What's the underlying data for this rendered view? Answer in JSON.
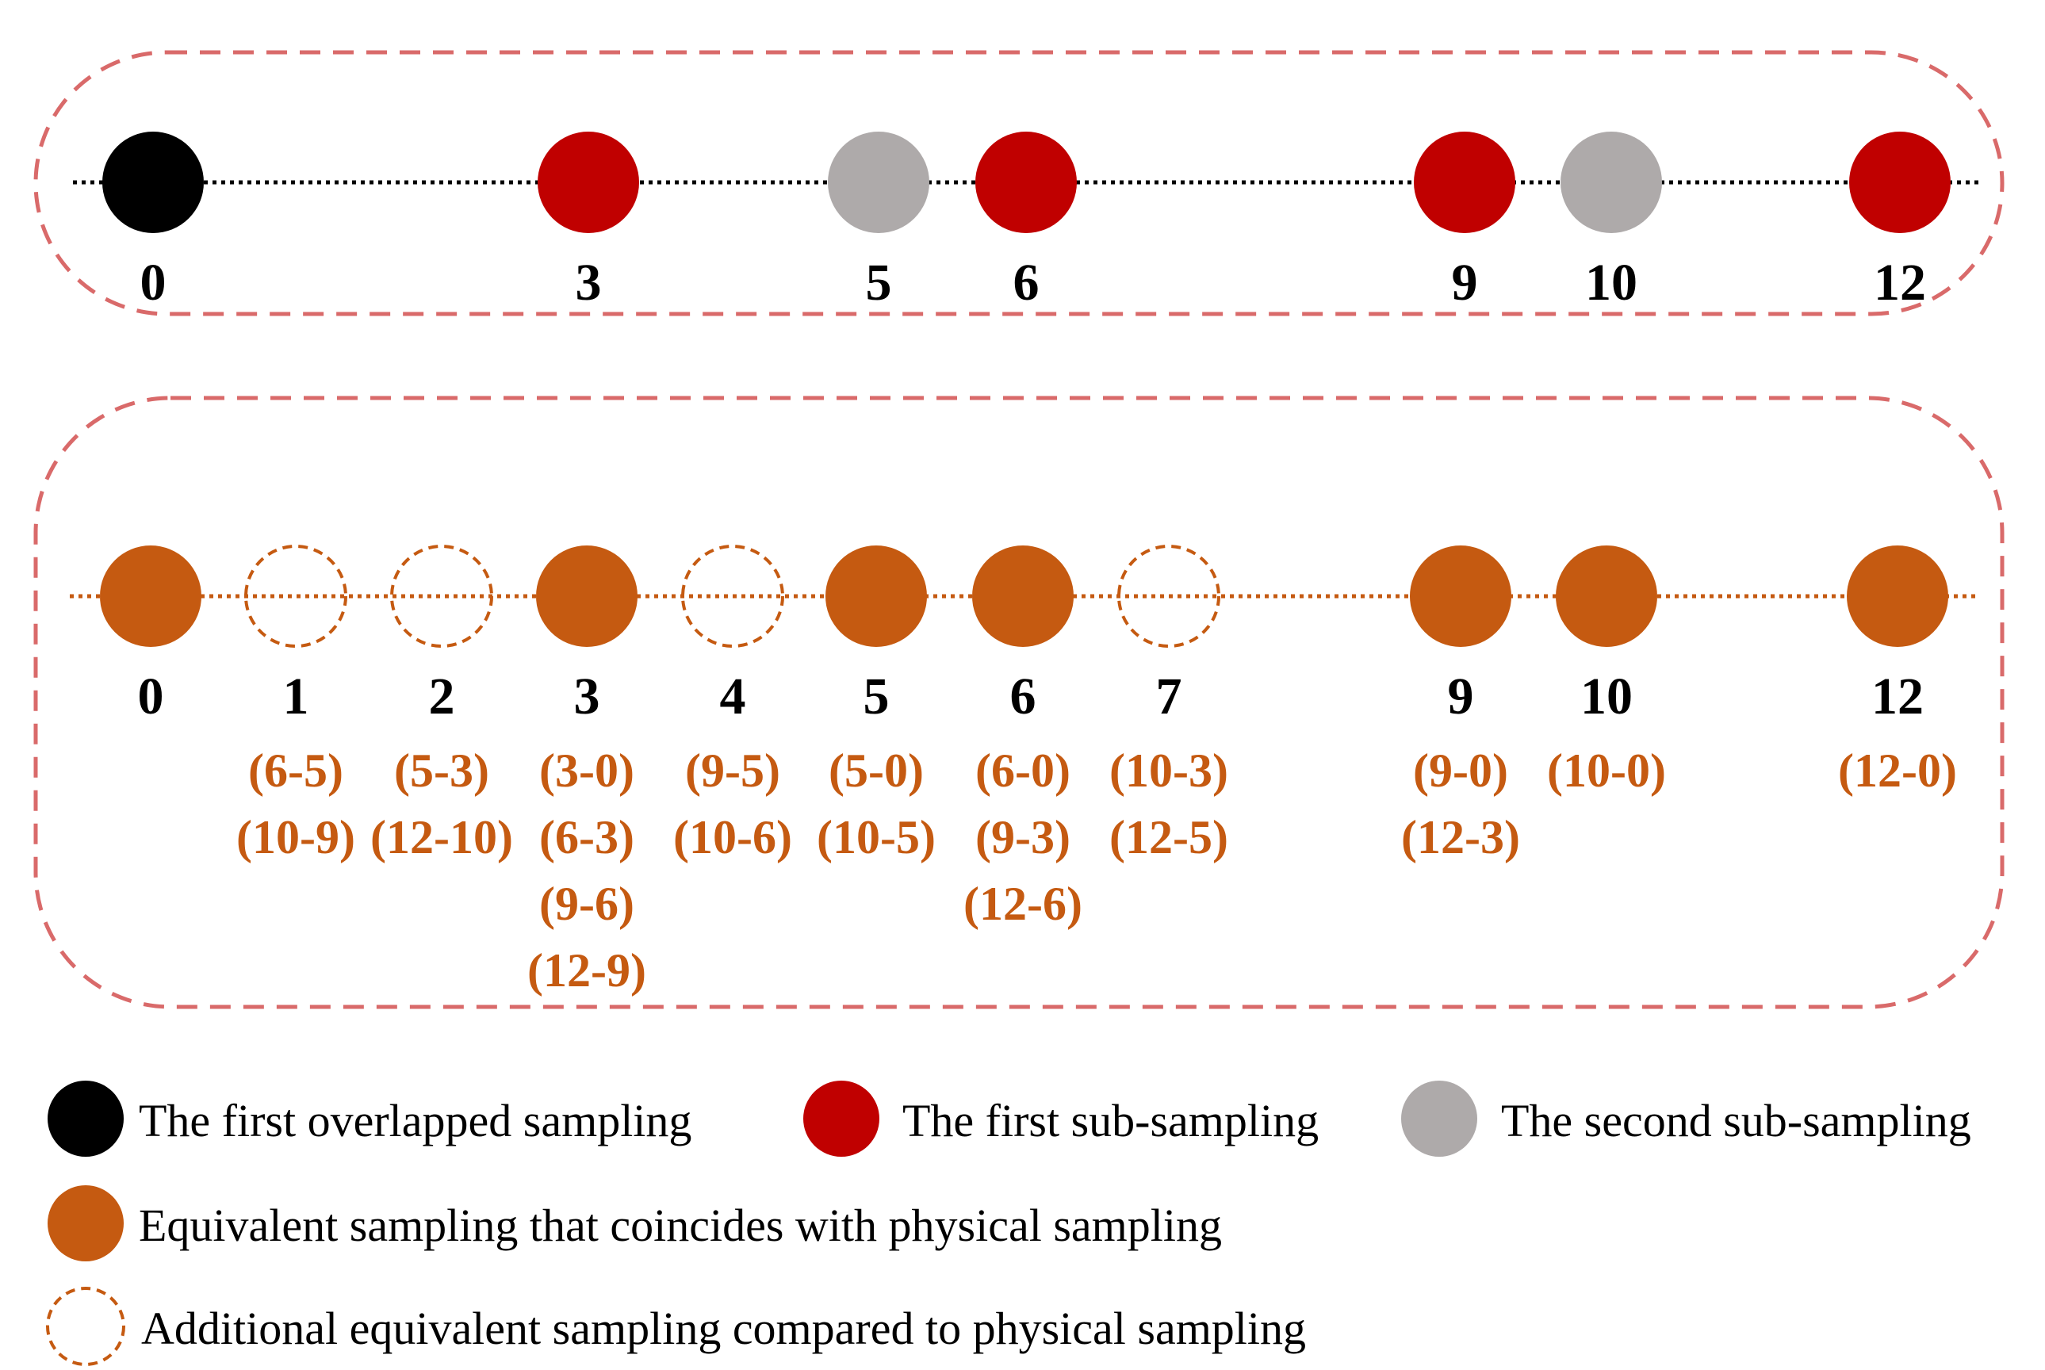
{
  "colors": {
    "frame": "#d96a6a",
    "black": "#000000",
    "red": "#c00000",
    "gray": "#aeaaaa",
    "orange": "#c55a11",
    "label": "#000000"
  },
  "physical_sampling": {
    "points": [
      {
        "label": "0",
        "kind": "black"
      },
      {
        "label": "3",
        "kind": "red"
      },
      {
        "label": "5",
        "kind": "gray"
      },
      {
        "label": "6",
        "kind": "red"
      },
      {
        "label": "9",
        "kind": "red"
      },
      {
        "label": "10",
        "kind": "gray"
      },
      {
        "label": "12",
        "kind": "red"
      }
    ]
  },
  "equivalent_sampling": {
    "points": [
      {
        "label": "0",
        "kind": "solid",
        "diffs": []
      },
      {
        "label": "1",
        "kind": "dashed",
        "diffs": [
          "(6-5)",
          "(10-9)"
        ]
      },
      {
        "label": "2",
        "kind": "dashed",
        "diffs": [
          "(5-3)",
          "(12-10)"
        ]
      },
      {
        "label": "3",
        "kind": "solid",
        "diffs": [
          "(3-0)",
          "(6-3)",
          "(9-6)",
          "(12-9)"
        ]
      },
      {
        "label": "4",
        "kind": "dashed",
        "diffs": [
          "(9-5)",
          "(10-6)"
        ]
      },
      {
        "label": "5",
        "kind": "solid",
        "diffs": [
          "(5-0)",
          "(10-5)"
        ]
      },
      {
        "label": "6",
        "kind": "solid",
        "diffs": [
          "(6-0)",
          "(9-3)",
          "(12-6)"
        ]
      },
      {
        "label": "7",
        "kind": "dashed",
        "diffs": [
          "(10-3)",
          "(12-5)"
        ]
      },
      {
        "label": "9",
        "kind": "solid",
        "diffs": [
          "(9-0)",
          "(12-3)"
        ]
      },
      {
        "label": "10",
        "kind": "solid",
        "diffs": [
          "(10-0)"
        ]
      },
      {
        "label": "12",
        "kind": "solid",
        "diffs": [
          "(12-0)"
        ]
      }
    ]
  },
  "legend": [
    {
      "icon": "black-circle",
      "label": "The first overlapped sampling"
    },
    {
      "icon": "red-circle",
      "label": "The first sub-sampling"
    },
    {
      "icon": "gray-circle",
      "label": "The second sub-sampling"
    },
    {
      "icon": "orange-circle",
      "label": "Equivalent sampling that coincides with physical sampling"
    },
    {
      "icon": "dashed-orange-circle",
      "label": "Additional equivalent sampling compared to physical sampling"
    }
  ]
}
